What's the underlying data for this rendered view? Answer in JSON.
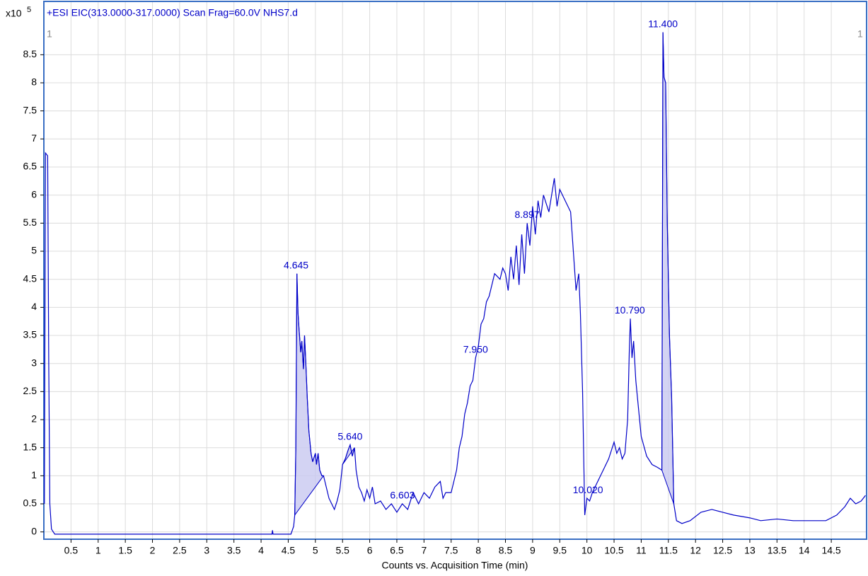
{
  "chart_data": {
    "type": "line",
    "title": "+ESI EIC(313.0000-317.0000) Scan Frag=60.0V NHS7.d",
    "xlabel": "Counts vs. Acquisition Time (min)",
    "y_multiplier": "x10",
    "y_multiplier_exponent": "5",
    "corner_markers": [
      "1",
      "1"
    ],
    "xlim": [
      0,
      15.15
    ],
    "ylim": [
      -0.13,
      9.45
    ],
    "xticks": [
      0.5,
      1,
      1.5,
      2,
      2.5,
      3,
      3.5,
      4,
      4.5,
      5,
      5.5,
      6,
      6.5,
      7,
      7.5,
      8,
      8.5,
      9,
      9.5,
      10,
      10.5,
      11,
      11.5,
      12,
      12.5,
      13,
      13.5,
      14,
      14.5
    ],
    "yticks": [
      0,
      0.5,
      1,
      1.5,
      2,
      2.5,
      3,
      3.5,
      4,
      4.5,
      5,
      5.5,
      6,
      6.5,
      7,
      7.5,
      8,
      8.5
    ],
    "grid": true,
    "x": [
      0.01,
      0.03,
      0.07,
      0.09,
      0.11,
      0.14,
      0.2,
      4.2,
      4.21,
      4.22,
      4.55,
      4.6,
      4.62,
      4.64,
      4.66,
      4.68,
      4.7,
      4.73,
      4.75,
      4.78,
      4.8,
      4.82,
      4.85,
      4.88,
      4.92,
      4.95,
      5.0,
      5.02,
      5.05,
      5.08,
      5.12,
      5.15,
      5.2,
      5.25,
      5.3,
      5.35,
      5.4,
      5.45,
      5.5,
      5.55,
      5.6,
      5.64,
      5.68,
      5.72,
      5.75,
      5.8,
      5.85,
      5.9,
      5.95,
      6.0,
      6.05,
      6.1,
      6.2,
      6.3,
      6.4,
      6.5,
      6.6,
      6.7,
      6.8,
      6.9,
      7.0,
      7.1,
      7.2,
      7.3,
      7.35,
      7.4,
      7.5,
      7.6,
      7.65,
      7.7,
      7.75,
      7.8,
      7.85,
      7.9,
      7.95,
      8.0,
      8.05,
      8.1,
      8.15,
      8.2,
      8.3,
      8.4,
      8.45,
      8.5,
      8.55,
      8.6,
      8.65,
      8.7,
      8.75,
      8.8,
      8.85,
      8.9,
      8.95,
      9.0,
      9.05,
      9.1,
      9.15,
      9.2,
      9.3,
      9.4,
      9.45,
      9.5,
      9.6,
      9.7,
      9.75,
      9.8,
      9.85,
      9.88,
      9.92,
      9.96,
      10.0,
      10.05,
      10.1,
      10.2,
      10.3,
      10.4,
      10.5,
      10.55,
      10.6,
      10.65,
      10.7,
      10.75,
      10.78,
      10.8,
      10.83,
      10.86,
      10.9,
      10.95,
      11.0,
      11.1,
      11.2,
      11.3,
      11.38,
      11.4,
      11.42,
      11.45,
      11.48,
      11.52,
      11.56,
      11.6,
      11.65,
      11.75,
      11.9,
      12.1,
      12.3,
      12.5,
      12.7,
      13.0,
      13.2,
      13.5,
      13.8,
      14.2,
      14.4,
      14.6,
      14.75,
      14.85,
      14.95,
      15.05,
      15.13
    ],
    "series": [
      {
        "color": "#0000c8",
        "values": [
          0.5,
          6.75,
          6.7,
          3.0,
          0.5,
          0.05,
          -0.04,
          -0.04,
          0.03,
          -0.04,
          -0.04,
          0.1,
          0.3,
          1.5,
          4.6,
          3.9,
          3.6,
          3.2,
          3.4,
          2.9,
          3.5,
          3.1,
          2.4,
          1.8,
          1.4,
          1.25,
          1.4,
          1.2,
          1.4,
          1.1,
          1.0,
          1.0,
          0.8,
          0.6,
          0.5,
          0.4,
          0.55,
          0.75,
          1.2,
          1.3,
          1.45,
          1.55,
          1.35,
          1.5,
          1.1,
          0.8,
          0.7,
          0.55,
          0.75,
          0.6,
          0.8,
          0.5,
          0.55,
          0.4,
          0.5,
          0.35,
          0.5,
          0.4,
          0.7,
          0.5,
          0.7,
          0.6,
          0.8,
          0.9,
          0.6,
          0.7,
          0.7,
          1.1,
          1.5,
          1.7,
          2.1,
          2.3,
          2.6,
          2.7,
          3.1,
          3.3,
          3.7,
          3.8,
          4.1,
          4.2,
          4.6,
          4.5,
          4.7,
          4.6,
          4.3,
          4.9,
          4.5,
          5.1,
          4.4,
          5.3,
          4.6,
          5.5,
          5.1,
          5.8,
          5.3,
          5.9,
          5.6,
          6.0,
          5.7,
          6.3,
          5.8,
          6.1,
          5.9,
          5.7,
          5.0,
          4.3,
          4.6,
          3.9,
          2.5,
          0.3,
          0.6,
          0.55,
          0.7,
          0.9,
          1.1,
          1.3,
          1.6,
          1.4,
          1.5,
          1.3,
          1.4,
          2.0,
          3.2,
          3.8,
          3.1,
          3.4,
          2.7,
          2.2,
          1.7,
          1.35,
          1.2,
          1.15,
          1.1,
          8.9,
          8.1,
          8.0,
          5.5,
          3.5,
          2.4,
          0.5,
          0.2,
          0.15,
          0.2,
          0.35,
          0.4,
          0.35,
          0.3,
          0.25,
          0.2,
          0.23,
          0.2,
          0.2,
          0.2,
          0.3,
          0.45,
          0.6,
          0.5,
          0.55,
          0.65
        ]
      }
    ],
    "integrations": [
      {
        "from": 4.62,
        "to": 5.15
      },
      {
        "from": 5.5,
        "to": 5.72
      },
      {
        "from": 11.38,
        "to": 11.6
      }
    ],
    "annotations": [
      {
        "label": "4.645",
        "x": 4.645,
        "y": 4.6
      },
      {
        "label": "5.640",
        "x": 5.64,
        "y": 1.55
      },
      {
        "label": "6.603",
        "x": 6.603,
        "y": 0.5
      },
      {
        "label": "7.950",
        "x": 7.95,
        "y": 3.1
      },
      {
        "label": "8.897",
        "x": 8.897,
        "y": 5.5
      },
      {
        "label": "10.020",
        "x": 10.02,
        "y": 0.6
      },
      {
        "label": "10.790",
        "x": 10.79,
        "y": 3.8
      },
      {
        "label": "11.400",
        "x": 11.4,
        "y": 8.9
      }
    ]
  }
}
